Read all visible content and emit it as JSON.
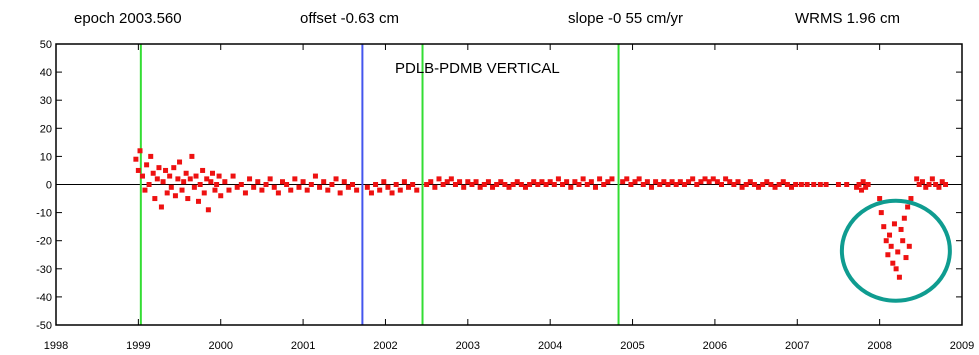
{
  "header": {
    "epoch": "epoch 2003.560",
    "offset": "offset -0.63 cm",
    "slope": "slope -0 55 cm/yr",
    "wrms": "WRMS 1.96 cm"
  },
  "chart_data": {
    "type": "scatter",
    "title": "PDLB-PDMB VERTICAL",
    "xlabel": "",
    "ylabel": "",
    "xlim": [
      1998,
      2009
    ],
    "ylim": [
      -50,
      50
    ],
    "xticks": [
      "1998",
      "1999",
      "2000",
      "2001",
      "2002",
      "2003",
      "2004",
      "2005",
      "2006",
      "2007",
      "2008",
      "2009"
    ],
    "yticks": [
      "50",
      "40",
      "30",
      "20",
      "10",
      "0",
      "-10",
      "-20",
      "-30",
      "-40",
      "-50"
    ],
    "zero_line": 0,
    "vertical_lines": [
      {
        "x": 1999.03,
        "color": "#33dd33"
      },
      {
        "x": 2001.72,
        "color": "#4455ee"
      },
      {
        "x": 2002.45,
        "color": "#33dd33"
      },
      {
        "x": 2004.83,
        "color": "#33dd33"
      }
    ],
    "highlight_ellipse": {
      "x": 2008.1,
      "y": -25,
      "color": "#0f9c90"
    },
    "series": [
      {
        "color": "#ee1111",
        "points": [
          [
            1998.97,
            9
          ],
          [
            1999.0,
            5
          ],
          [
            1999.02,
            12
          ],
          [
            1999.05,
            3
          ],
          [
            1999.08,
            -2
          ],
          [
            1999.1,
            7
          ],
          [
            1999.13,
            0
          ],
          [
            1999.15,
            10
          ],
          [
            1999.18,
            4
          ],
          [
            1999.2,
            -5
          ],
          [
            1999.23,
            2
          ],
          [
            1999.25,
            6
          ],
          [
            1999.28,
            -8
          ],
          [
            1999.3,
            1
          ],
          [
            1999.33,
            5
          ],
          [
            1999.35,
            -3
          ],
          [
            1999.38,
            3
          ],
          [
            1999.4,
            -1
          ],
          [
            1999.43,
            6
          ],
          [
            1999.45,
            -4
          ],
          [
            1999.48,
            2
          ],
          [
            1999.5,
            8
          ],
          [
            1999.53,
            -2
          ],
          [
            1999.55,
            1
          ],
          [
            1999.58,
            4
          ],
          [
            1999.6,
            -5
          ],
          [
            1999.63,
            2
          ],
          [
            1999.65,
            10
          ],
          [
            1999.68,
            -1
          ],
          [
            1999.7,
            3
          ],
          [
            1999.73,
            -6
          ],
          [
            1999.75,
            0
          ],
          [
            1999.78,
            5
          ],
          [
            1999.8,
            -3
          ],
          [
            1999.83,
            2
          ],
          [
            1999.85,
            -9
          ],
          [
            1999.88,
            1
          ],
          [
            1999.9,
            4
          ],
          [
            1999.93,
            -2
          ],
          [
            1999.95,
            0
          ],
          [
            1999.98,
            3
          ],
          [
            2000.0,
            -4
          ],
          [
            2000.05,
            1
          ],
          [
            2000.1,
            -2
          ],
          [
            2000.15,
            3
          ],
          [
            2000.2,
            -1
          ],
          [
            2000.25,
            0
          ],
          [
            2000.3,
            -3
          ],
          [
            2000.35,
            2
          ],
          [
            2000.4,
            -1
          ],
          [
            2000.45,
            1
          ],
          [
            2000.5,
            -2
          ],
          [
            2000.55,
            0
          ],
          [
            2000.6,
            2
          ],
          [
            2000.65,
            -1
          ],
          [
            2000.7,
            -3
          ],
          [
            2000.75,
            1
          ],
          [
            2000.8,
            0
          ],
          [
            2000.85,
            -2
          ],
          [
            2000.9,
            2
          ],
          [
            2000.95,
            -1
          ],
          [
            2001.0,
            1
          ],
          [
            2001.05,
            -2
          ],
          [
            2001.1,
            0
          ],
          [
            2001.15,
            3
          ],
          [
            2001.2,
            -1
          ],
          [
            2001.25,
            1
          ],
          [
            2001.3,
            -2
          ],
          [
            2001.35,
            0
          ],
          [
            2001.4,
            2
          ],
          [
            2001.45,
            -3
          ],
          [
            2001.5,
            1
          ],
          [
            2001.55,
            -1
          ],
          [
            2001.6,
            0
          ],
          [
            2001.65,
            -2
          ],
          [
            2001.78,
            -1
          ],
          [
            2001.83,
            -3
          ],
          [
            2001.88,
            0
          ],
          [
            2001.93,
            -2
          ],
          [
            2001.98,
            1
          ],
          [
            2002.03,
            -1
          ],
          [
            2002.08,
            -3
          ],
          [
            2002.13,
            0
          ],
          [
            2002.18,
            -2
          ],
          [
            2002.23,
            1
          ],
          [
            2002.28,
            -1
          ],
          [
            2002.33,
            0
          ],
          [
            2002.38,
            -2
          ],
          [
            2002.5,
            0
          ],
          [
            2002.55,
            1
          ],
          [
            2002.6,
            -1
          ],
          [
            2002.65,
            2
          ],
          [
            2002.7,
            0
          ],
          [
            2002.75,
            1
          ],
          [
            2002.8,
            2
          ],
          [
            2002.85,
            0
          ],
          [
            2002.9,
            1
          ],
          [
            2002.95,
            -1
          ],
          [
            2003.0,
            1
          ],
          [
            2003.05,
            0
          ],
          [
            2003.1,
            1
          ],
          [
            2003.15,
            -1
          ],
          [
            2003.2,
            0
          ],
          [
            2003.25,
            1
          ],
          [
            2003.3,
            -1
          ],
          [
            2003.35,
            0
          ],
          [
            2003.4,
            1
          ],
          [
            2003.45,
            0
          ],
          [
            2003.5,
            -1
          ],
          [
            2003.55,
            0
          ],
          [
            2003.6,
            1
          ],
          [
            2003.65,
            0
          ],
          [
            2003.7,
            -1
          ],
          [
            2003.75,
            0
          ],
          [
            2003.8,
            1
          ],
          [
            2003.85,
            0
          ],
          [
            2003.9,
            1
          ],
          [
            2003.95,
            0
          ],
          [
            2004.0,
            1
          ],
          [
            2004.05,
            0
          ],
          [
            2004.1,
            2
          ],
          [
            2004.15,
            0
          ],
          [
            2004.2,
            1
          ],
          [
            2004.25,
            -1
          ],
          [
            2004.3,
            1
          ],
          [
            2004.35,
            0
          ],
          [
            2004.4,
            2
          ],
          [
            2004.45,
            0
          ],
          [
            2004.5,
            1
          ],
          [
            2004.55,
            -1
          ],
          [
            2004.6,
            2
          ],
          [
            2004.65,
            0
          ],
          [
            2004.7,
            1
          ],
          [
            2004.75,
            2
          ],
          [
            2004.88,
            1
          ],
          [
            2004.93,
            2
          ],
          [
            2004.98,
            0
          ],
          [
            2005.03,
            1
          ],
          [
            2005.08,
            2
          ],
          [
            2005.13,
            0
          ],
          [
            2005.18,
            1
          ],
          [
            2005.23,
            -1
          ],
          [
            2005.28,
            1
          ],
          [
            2005.33,
            0
          ],
          [
            2005.38,
            1
          ],
          [
            2005.43,
            0
          ],
          [
            2005.48,
            1
          ],
          [
            2005.53,
            0
          ],
          [
            2005.58,
            1
          ],
          [
            2005.63,
            0
          ],
          [
            2005.68,
            1
          ],
          [
            2005.73,
            2
          ],
          [
            2005.78,
            0
          ],
          [
            2005.83,
            1
          ],
          [
            2005.88,
            2
          ],
          [
            2005.93,
            1
          ],
          [
            2005.98,
            2
          ],
          [
            2006.03,
            1
          ],
          [
            2006.08,
            0
          ],
          [
            2006.13,
            2
          ],
          [
            2006.18,
            1
          ],
          [
            2006.23,
            0
          ],
          [
            2006.28,
            1
          ],
          [
            2006.33,
            -1
          ],
          [
            2006.38,
            0
          ],
          [
            2006.43,
            1
          ],
          [
            2006.48,
            0
          ],
          [
            2006.53,
            -1
          ],
          [
            2006.58,
            0
          ],
          [
            2006.63,
            1
          ],
          [
            2006.68,
            0
          ],
          [
            2006.73,
            -1
          ],
          [
            2006.78,
            0
          ],
          [
            2006.83,
            1
          ],
          [
            2006.88,
            0
          ],
          [
            2006.93,
            -1
          ],
          [
            2006.98,
            0
          ],
          [
            2007.05,
            0
          ],
          [
            2007.12,
            0
          ],
          [
            2007.2,
            0
          ],
          [
            2007.28,
            0
          ],
          [
            2007.35,
            0
          ],
          [
            2007.5,
            0
          ],
          [
            2007.6,
            0
          ],
          [
            2007.72,
            -1
          ],
          [
            2007.75,
            0
          ],
          [
            2007.78,
            -2
          ],
          [
            2007.8,
            1
          ],
          [
            2007.83,
            -1
          ],
          [
            2007.86,
            0
          ],
          [
            2008.0,
            -5
          ],
          [
            2008.02,
            -10
          ],
          [
            2008.05,
            -15
          ],
          [
            2008.08,
            -20
          ],
          [
            2008.1,
            -25
          ],
          [
            2008.12,
            -18
          ],
          [
            2008.14,
            -22
          ],
          [
            2008.16,
            -28
          ],
          [
            2008.18,
            -14
          ],
          [
            2008.2,
            -30
          ],
          [
            2008.22,
            -24
          ],
          [
            2008.24,
            -33
          ],
          [
            2008.26,
            -16
          ],
          [
            2008.28,
            -20
          ],
          [
            2008.3,
            -12
          ],
          [
            2008.32,
            -26
          ],
          [
            2008.34,
            -8
          ],
          [
            2008.36,
            -22
          ],
          [
            2008.38,
            -5
          ],
          [
            2008.45,
            2
          ],
          [
            2008.48,
            0
          ],
          [
            2008.52,
            1
          ],
          [
            2008.56,
            -1
          ],
          [
            2008.6,
            0
          ],
          [
            2008.64,
            2
          ],
          [
            2008.68,
            0
          ],
          [
            2008.72,
            -1
          ],
          [
            2008.76,
            1
          ],
          [
            2008.8,
            0
          ]
        ]
      }
    ]
  }
}
